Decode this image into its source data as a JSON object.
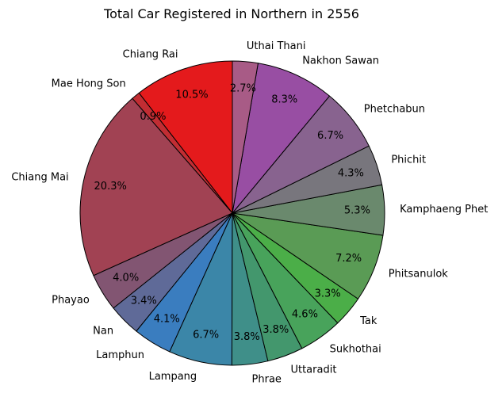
{
  "chart_data": {
    "type": "pie",
    "title": "Total Car Registered in Northern in 2556",
    "start_angle_deg": 90,
    "direction": "counterclockwise",
    "slices": [
      {
        "label": "Chiang Rai",
        "value": 10.5,
        "pct_label": "10.5%",
        "color": "#e41a1c"
      },
      {
        "label": "Mae Hong Son",
        "value": 0.9,
        "pct_label": "0.9%",
        "color": "#c22d33"
      },
      {
        "label": "Chiang Mai",
        "value": 20.3,
        "pct_label": "20.3%",
        "color": "#a14253"
      },
      {
        "label": "Phayao",
        "value": 4.0,
        "pct_label": "4.0%",
        "color": "#825572"
      },
      {
        "label": "Nan",
        "value": 3.4,
        "pct_label": "3.4%",
        "color": "#5f6a98"
      },
      {
        "label": "Lamphun",
        "value": 4.1,
        "pct_label": "4.1%",
        "color": "#3a7dbf"
      },
      {
        "label": "Lampang",
        "value": 6.7,
        "pct_label": "6.7%",
        "color": "#3b86a8"
      },
      {
        "label": "Phrae",
        "value": 3.8,
        "pct_label": "3.8%",
        "color": "#3f8f89"
      },
      {
        "label": "Uttaradit",
        "value": 3.8,
        "pct_label": "3.8%",
        "color": "#43976d"
      },
      {
        "label": "Sukhothai",
        "value": 4.6,
        "pct_label": "4.6%",
        "color": "#48a35b"
      },
      {
        "label": "Tak",
        "value": 3.3,
        "pct_label": "3.3%",
        "color": "#4bae48"
      },
      {
        "label": "Phitsanulok",
        "value": 7.2,
        "pct_label": "7.2%",
        "color": "#5a9b55"
      },
      {
        "label": "Kamphaeng Phet",
        "value": 5.3,
        "pct_label": "5.3%",
        "color": "#6a896d"
      },
      {
        "label": "Phichit",
        "value": 4.3,
        "pct_label": "4.3%",
        "color": "#78767d"
      },
      {
        "label": "Phetchabun",
        "value": 6.7,
        "pct_label": "6.7%",
        "color": "#88638f"
      },
      {
        "label": "Nakhon Sawan",
        "value": 8.3,
        "pct_label": "8.3%",
        "color": "#984ea3"
      },
      {
        "label": "Uthai Thani",
        "value": 2.7,
        "pct_label": "2.7%",
        "color": "#a85b86"
      }
    ]
  }
}
